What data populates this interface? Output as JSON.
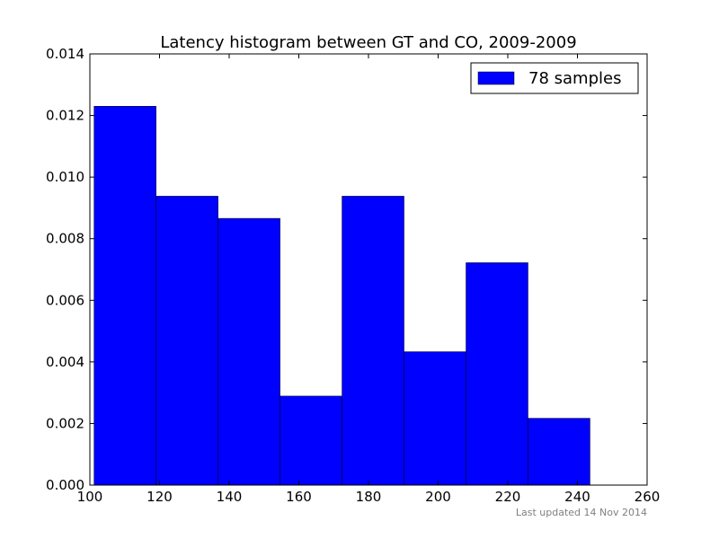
{
  "chart_data": {
    "type": "bar",
    "title": "Latency histogram between GT and CO, 2009-2009",
    "xlabel": "",
    "ylabel": "",
    "xlim": [
      100,
      260
    ],
    "ylim": [
      0,
      0.014
    ],
    "x_ticks": [
      "100",
      "120",
      "140",
      "160",
      "180",
      "200",
      "220",
      "240",
      "260"
    ],
    "y_ticks": [
      "0.000",
      "0.002",
      "0.004",
      "0.006",
      "0.008",
      "0.010",
      "0.012",
      "0.014"
    ],
    "bins": [
      {
        "start": 101.2,
        "end": 119.0,
        "value": 0.0123
      },
      {
        "start": 119.0,
        "end": 136.8,
        "value": 0.00938
      },
      {
        "start": 136.8,
        "end": 154.6,
        "value": 0.00866
      },
      {
        "start": 154.6,
        "end": 172.4,
        "value": 0.00289
      },
      {
        "start": 172.4,
        "end": 190.2,
        "value": 0.00938
      },
      {
        "start": 190.2,
        "end": 208.0,
        "value": 0.00433
      },
      {
        "start": 208.0,
        "end": 225.8,
        "value": 0.00722
      },
      {
        "start": 225.8,
        "end": 243.6,
        "value": 0.00217
      }
    ],
    "series": [
      {
        "name": "78 samples",
        "color": "#0000ff"
      }
    ],
    "legend_position": "top-right",
    "grid": false
  },
  "footer": {
    "updated": "Last updated 14 Nov 2014"
  }
}
